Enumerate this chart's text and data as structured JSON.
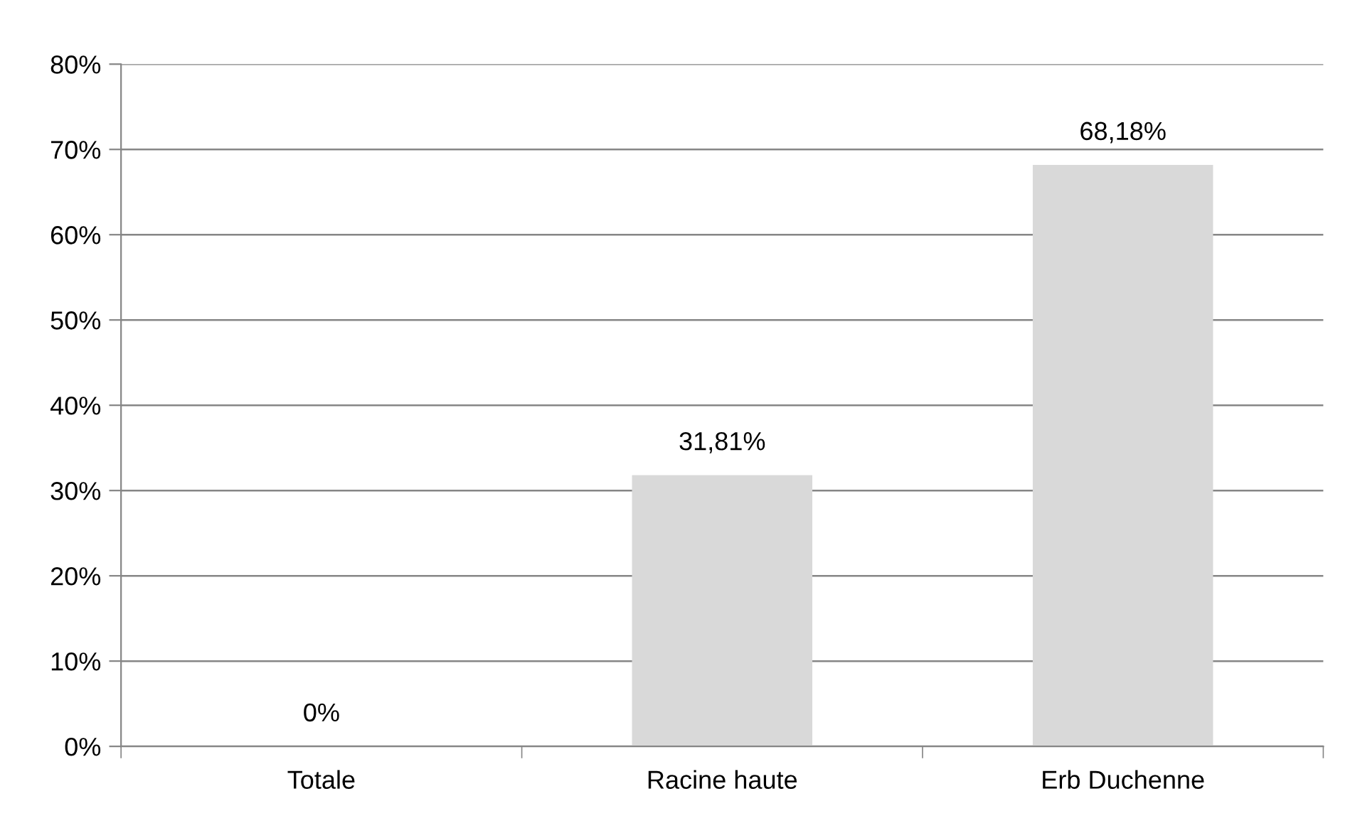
{
  "chart_data": {
    "type": "bar",
    "categories": [
      "Totale",
      "Racine haute",
      "Erb Duchenne"
    ],
    "values": [
      0,
      31.81,
      68.18
    ],
    "value_labels": [
      "0%",
      "31,81%",
      "68,18%"
    ],
    "color": "#d9d9d9",
    "ylim": [
      0,
      80
    ],
    "yticks": [
      {
        "value": 0,
        "label": "0%"
      },
      {
        "value": 10,
        "label": "10%"
      },
      {
        "value": 20,
        "label": "20%"
      },
      {
        "value": 30,
        "label": "30%"
      },
      {
        "value": 40,
        "label": "40%"
      },
      {
        "value": 50,
        "label": "50%"
      },
      {
        "value": 60,
        "label": "60%"
      },
      {
        "value": 70,
        "label": "70%"
      },
      {
        "value": 80,
        "label": "80%"
      }
    ],
    "grid": "y"
  }
}
